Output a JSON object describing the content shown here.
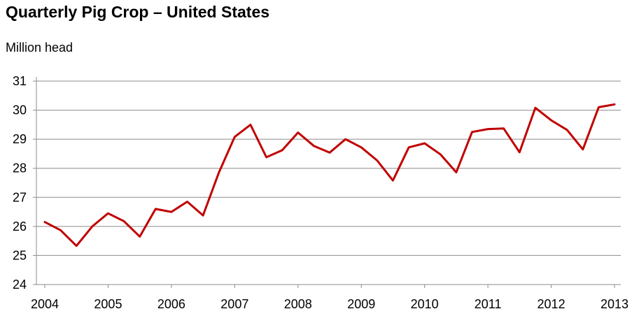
{
  "chart_data": {
    "type": "line",
    "title": "Quarterly Pig Crop – United States",
    "ylabel": "Million head",
    "xlabel": "",
    "ylim": [
      24,
      31
    ],
    "yticks": [
      24,
      25,
      26,
      27,
      28,
      29,
      30,
      31
    ],
    "xticks": [
      "2004",
      "2005",
      "2006",
      "2007",
      "2008",
      "2009",
      "2010",
      "2011",
      "2012",
      "2013"
    ],
    "grid": "horizontal",
    "series_color": "#c00000",
    "series": [
      {
        "x": [
          2004.0,
          2004.25,
          2004.5,
          2004.75,
          2005.0,
          2005.25,
          2005.5,
          2005.75,
          2006.0,
          2006.25,
          2006.5,
          2006.75,
          2007.0,
          2007.25,
          2007.5,
          2007.75,
          2008.0,
          2008.25,
          2008.5,
          2008.75,
          2009.0,
          2009.25,
          2009.5,
          2009.75,
          2010.0,
          2010.25,
          2010.5,
          2010.75,
          2011.0,
          2011.25,
          2011.5,
          2011.75,
          2012.0,
          2012.25,
          2012.5,
          2012.75,
          2013.0
        ],
        "values": [
          26.15,
          25.87,
          25.33,
          26.0,
          26.45,
          26.18,
          25.65,
          26.6,
          26.5,
          26.85,
          26.38,
          27.85,
          29.08,
          29.5,
          28.38,
          28.62,
          29.23,
          28.77,
          28.54,
          29.0,
          28.72,
          28.27,
          27.58,
          28.72,
          28.86,
          28.48,
          27.86,
          29.25,
          29.35,
          29.37,
          28.55,
          30.08,
          29.65,
          29.32,
          28.65,
          30.1,
          30.2
        ]
      }
    ]
  }
}
